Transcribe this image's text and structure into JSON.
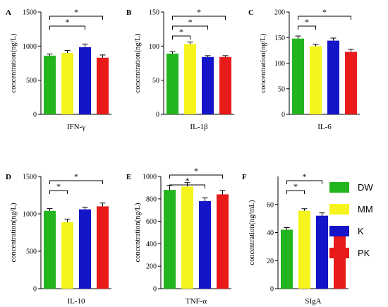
{
  "figure": {
    "legend": [
      {
        "label": "DW",
        "color": "#22b51e"
      },
      {
        "label": "MM",
        "color": "#f6f41d"
      },
      {
        "label": "K",
        "color": "#1414c8"
      },
      {
        "label": "PK",
        "color": "#e81a1a"
      }
    ]
  },
  "chart_data": [
    {
      "panel": "A",
      "type": "bar",
      "categories": [
        "DW",
        "MM",
        "K",
        "PK"
      ],
      "values": [
        860,
        900,
        985,
        830
      ],
      "errors": [
        25,
        35,
        45,
        40
      ],
      "ylabel": "concentration(ng/L)",
      "xlabel": "IFN-γ",
      "ylim": [
        0,
        1500
      ],
      "yticks": [
        0,
        500,
        1000,
        1500
      ],
      "significance": [
        {
          "from": 0,
          "to": 2,
          "label": "*"
        },
        {
          "from": 0,
          "to": 3,
          "label": "*"
        }
      ]
    },
    {
      "panel": "B",
      "type": "bar",
      "categories": [
        "DW",
        "MM",
        "K",
        "PK"
      ],
      "values": [
        89,
        103,
        84,
        84
      ],
      "errors": [
        3,
        3,
        2,
        2
      ],
      "ylabel": "concentration(ng/L)",
      "xlabel": "IL-1β",
      "ylim": [
        0,
        150
      ],
      "yticks": [
        0,
        50,
        100,
        150
      ],
      "significance": [
        {
          "from": 0,
          "to": 1,
          "label": "*"
        },
        {
          "from": 0,
          "to": 2,
          "label": "*"
        },
        {
          "from": 0,
          "to": 3,
          "label": "*"
        }
      ]
    },
    {
      "panel": "C",
      "type": "bar",
      "categories": [
        "DW",
        "MM",
        "K",
        "PK"
      ],
      "values": [
        148,
        133,
        144,
        122
      ],
      "errors": [
        5,
        4,
        5,
        5
      ],
      "ylabel": "concentration(ng/L)",
      "xlabel": "IL-6",
      "ylim": [
        0,
        200
      ],
      "yticks": [
        0,
        50,
        100,
        150,
        200
      ],
      "significance": [
        {
          "from": 0,
          "to": 1,
          "label": "*"
        },
        {
          "from": 0,
          "to": 3,
          "label": "*"
        }
      ]
    },
    {
      "panel": "D",
      "type": "bar",
      "categories": [
        "DW",
        "MM",
        "K",
        "PK"
      ],
      "values": [
        1040,
        890,
        1060,
        1100
      ],
      "errors": [
        30,
        40,
        30,
        45
      ],
      "ylabel": "concentration(ng/L)",
      "xlabel": "IL-10",
      "ylim": [
        0,
        1500
      ],
      "yticks": [
        0,
        500,
        1000,
        1500
      ],
      "significance": [
        {
          "from": 0,
          "to": 1,
          "label": "*"
        },
        {
          "from": 0,
          "to": 3,
          "label": "*"
        }
      ]
    },
    {
      "panel": "E",
      "type": "bar",
      "categories": [
        "DW",
        "MM",
        "K",
        "PK"
      ],
      "values": [
        880,
        910,
        780,
        840
      ],
      "errors": [
        40,
        35,
        30,
        35
      ],
      "ylabel": "concentration(ng/L)",
      "xlabel": "TNF-α",
      "ylim": [
        0,
        1000
      ],
      "yticks": [
        0,
        200,
        400,
        600,
        800,
        1000
      ],
      "significance": [
        {
          "from": 0,
          "to": 2,
          "label": "*"
        },
        {
          "from": 0,
          "to": 3,
          "label": "*"
        }
      ]
    },
    {
      "panel": "F",
      "type": "bar",
      "categories": [
        "DW",
        "MM",
        "K",
        "PK"
      ],
      "values": [
        42,
        55.5,
        52,
        41.5
      ],
      "errors": [
        1.5,
        1.5,
        2,
        2
      ],
      "ylabel": "concentration(ng/mL)",
      "xlabel": "SIgA",
      "ylim": [
        0,
        80
      ],
      "yticks": [
        0,
        20,
        40,
        60
      ],
      "significance": [
        {
          "from": 0,
          "to": 1,
          "label": "*"
        },
        {
          "from": 0,
          "to": 2,
          "label": "*"
        }
      ]
    }
  ]
}
